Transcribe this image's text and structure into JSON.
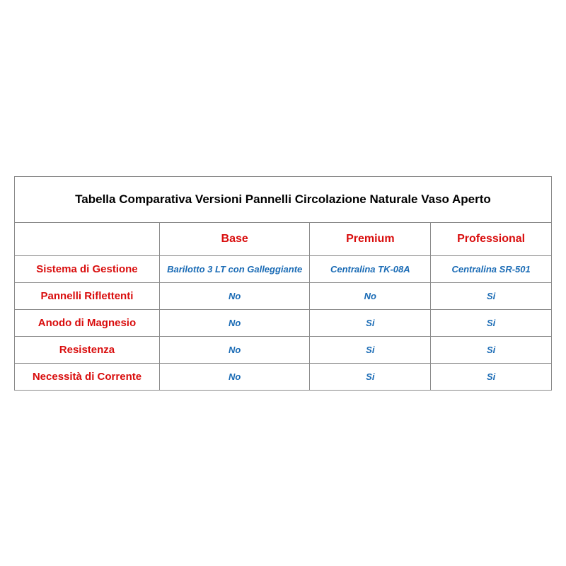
{
  "table": {
    "title": "Tabella Comparativa Versioni Pannelli Circolazione Naturale Vaso Aperto",
    "columns": [
      "Base",
      "Premium",
      "Professional"
    ],
    "rows": [
      {
        "label": "Sistema di Gestione",
        "values": [
          "Barilotto 3 LT con Galleggiante",
          "Centralina TK-08A",
          "Centralina SR-501"
        ]
      },
      {
        "label": "Pannelli Riflettenti",
        "values": [
          "No",
          "No",
          "Si"
        ]
      },
      {
        "label": "Anodo di Magnesio",
        "values": [
          "No",
          "Si",
          "Si"
        ]
      },
      {
        "label": "Resistenza",
        "values": [
          "No",
          "Si",
          "Si"
        ]
      },
      {
        "label": "Necessità di Corrente",
        "values": [
          "No",
          "Si",
          "Si"
        ]
      }
    ],
    "colors": {
      "title_text": "#000000",
      "header_text": "#d90d0d",
      "row_label_text": "#d90d0d",
      "data_text": "#1a6bb5",
      "border": "#8a8a8a",
      "background": "#ffffff"
    },
    "typography": {
      "title_fontsize": 17,
      "header_fontsize": 16,
      "row_label_fontsize": 15,
      "data_fontsize": 13,
      "data_font_style": "italic",
      "font_weight": "bold",
      "font_family": "Arial"
    },
    "layout": {
      "col_widths_pct": [
        27,
        28,
        22.5,
        22.5
      ],
      "title_row_padding_v": 22,
      "header_row_padding_v": 14,
      "data_row_padding_v": 10
    }
  }
}
